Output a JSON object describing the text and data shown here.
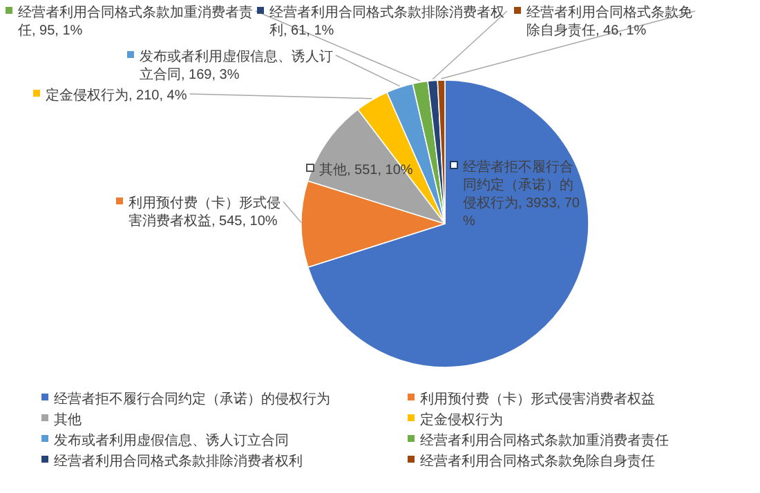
{
  "chart_data": {
    "type": "pie",
    "categories": [
      "经营者拒不履行合同约定（承诺）的侵权行为",
      "利用预付费（卡）形式侵害消费者权益",
      "其他",
      "定金侵权行为",
      "发布或者利用虚假信息、诱人订立合同",
      "经营者利用合同格式条款加重消费者责任",
      "经营者利用合同格式条款排除消费者权利",
      "经营者利用合同格式条款免除自身责任"
    ],
    "values": [
      3933,
      545,
      551,
      210,
      169,
      95,
      61,
      46
    ],
    "colors": [
      "#4472c4",
      "#ed7d31",
      "#a5a5a5",
      "#ffc000",
      "#5b9bd5",
      "#70ad47",
      "#264478",
      "#9e480e"
    ],
    "value_labels": [
      "经营者拒不履行合同约定（承诺）的侵权行为, 3933, 70%",
      "利用预付费（卡）形式侵害消费者权益, 545, 10%",
      "其他, 551, 10%",
      "定金侵权行为, 210, 4%",
      "发布或者利用虚假信息、诱人订立合同, 169, 3%",
      "经营者利用合同格式条款加重消费者责任, 95, 1%",
      "经营者利用合同格式条款排除消费者权利, 61, 1%",
      "经营者利用合同格式条款免除自身责任, 46, 1%"
    ],
    "legend": "bottom"
  }
}
